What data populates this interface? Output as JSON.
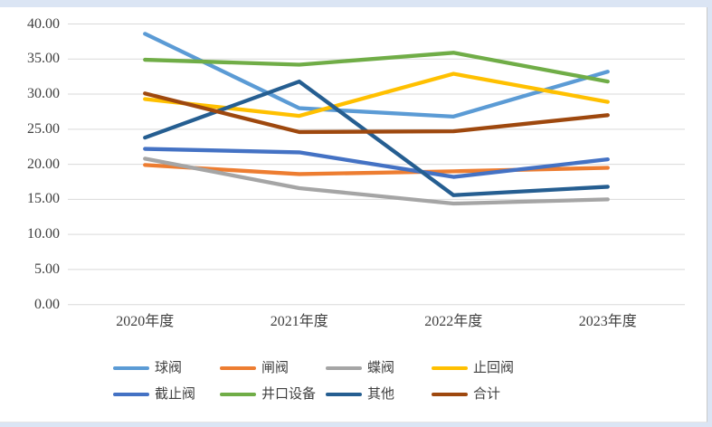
{
  "page": {
    "background_color": "#dbe5f4",
    "panel_color": "#ffffff",
    "gridline_color": "#d9d9d9",
    "text_color": "#404040"
  },
  "chart_data": {
    "type": "line",
    "title": "",
    "xlabel": "",
    "ylabel": "",
    "grid": true,
    "legend_position": "bottom",
    "ylim": [
      0,
      40
    ],
    "yticks": [
      0,
      5,
      10,
      15,
      20,
      25,
      30,
      35,
      40
    ],
    "ytick_labels": [
      "0.00",
      "5.00",
      "10.00",
      "15.00",
      "20.00",
      "25.00",
      "30.00",
      "35.00",
      "40.00"
    ],
    "categories": [
      "2020年度",
      "2021年度",
      "2022年度",
      "2023年度"
    ],
    "series": [
      {
        "id": "ball-valve",
        "name": "球阀",
        "color": "#5B9BD5",
        "values": [
          38.6,
          28.0,
          26.8,
          33.2
        ]
      },
      {
        "id": "gate-valve",
        "name": "闸阀",
        "color": "#ED7D31",
        "values": [
          19.9,
          18.6,
          19.0,
          19.5
        ]
      },
      {
        "id": "butterfly-valve",
        "name": "蝶阀",
        "color": "#A5A5A5",
        "values": [
          20.8,
          16.6,
          14.4,
          15.0
        ]
      },
      {
        "id": "check-valve",
        "name": "止回阀",
        "color": "#FFC000",
        "values": [
          29.3,
          26.9,
          32.9,
          28.9
        ]
      },
      {
        "id": "globe-valve",
        "name": "截止阀",
        "color": "#4472C4",
        "values": [
          22.2,
          21.7,
          18.2,
          20.7
        ]
      },
      {
        "id": "wellhead-equipment",
        "name": "井口设备",
        "color": "#70AD47",
        "values": [
          34.9,
          34.2,
          35.9,
          31.8
        ]
      },
      {
        "id": "other",
        "name": "其他",
        "color": "#255E91",
        "values": [
          23.8,
          31.8,
          15.6,
          16.8
        ]
      },
      {
        "id": "total",
        "name": "合计",
        "color": "#9E480E",
        "values": [
          30.1,
          24.6,
          24.7,
          27.0
        ]
      }
    ]
  }
}
